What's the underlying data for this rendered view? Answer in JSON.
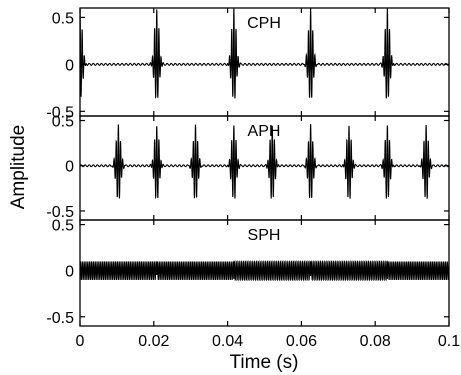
{
  "chart_data": {
    "type": "line",
    "xlabel": "Time (s)",
    "ylabel": "Amplitude",
    "xlim": [
      0,
      0.1
    ],
    "xticks": [
      0,
      0.02,
      0.04,
      0.06,
      0.08,
      0.1
    ],
    "xtick_labels": [
      "0",
      "0.02",
      "0.04",
      "0.06",
      "0.08",
      "0.1"
    ],
    "grid": false,
    "panels": [
      {
        "label": "CPH",
        "ylim": [
          -0.55,
          0.6
        ],
        "yticks": [
          0.5,
          0,
          -0.5
        ],
        "ytick_labels": [
          "0.5",
          "0",
          "-0.5"
        ],
        "signal": "pulse train",
        "pulse_times": [
          0.0,
          0.0208,
          0.0417,
          0.0625,
          0.0833
        ],
        "pulse_peak": 0.6,
        "pulse_trough": -0.4,
        "baseline_ripple": 0.02
      },
      {
        "label": "APH",
        "ylim": [
          -0.6,
          0.55
        ],
        "yticks": [
          0.5,
          0,
          -0.5
        ],
        "ytick_labels": [
          "0.5",
          "0",
          "-0.5"
        ],
        "signal": "pulse train",
        "pulse_times": [
          0.0104,
          0.0208,
          0.0313,
          0.0417,
          0.0521,
          0.0625,
          0.0729,
          0.0833,
          0.0938
        ],
        "pulse_peak": 0.45,
        "pulse_trough": -0.4,
        "baseline_ripple": 0.02
      },
      {
        "label": "SPH",
        "ylim": [
          -0.6,
          0.55
        ],
        "yticks": [
          0.5,
          0,
          -0.5
        ],
        "ytick_labels": [
          "0.5",
          "0",
          "-0.5"
        ],
        "signal": "continuous oscillation",
        "oscillation_amplitude": 0.1,
        "phase_change_times": [
          0.0208,
          0.0417,
          0.0625,
          0.0833
        ]
      }
    ]
  }
}
